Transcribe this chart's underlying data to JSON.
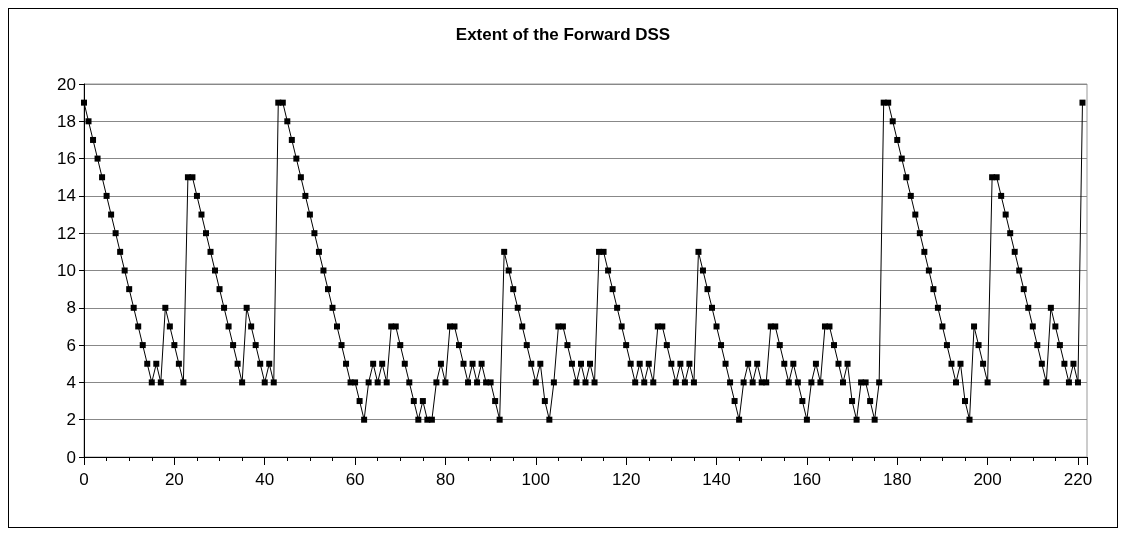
{
  "chart_data": {
    "type": "line",
    "title": "Extent of the Forward DSS",
    "x": [
      0,
      1,
      2,
      3,
      4,
      5,
      6,
      7,
      8,
      9,
      10,
      11,
      12,
      13,
      14,
      15,
      16,
      17,
      18,
      19,
      20,
      21,
      22,
      23,
      24,
      25,
      26,
      27,
      28,
      29,
      30,
      31,
      32,
      33,
      34,
      35,
      36,
      37,
      38,
      39,
      40,
      41,
      42,
      43,
      44,
      45,
      46,
      47,
      48,
      49,
      50,
      51,
      52,
      53,
      54,
      55,
      56,
      57,
      58,
      59,
      60,
      61,
      62,
      63,
      64,
      65,
      66,
      67,
      68,
      69,
      70,
      71,
      72,
      73,
      74,
      75,
      76,
      77,
      78,
      79,
      80,
      81,
      82,
      83,
      84,
      85,
      86,
      87,
      88,
      89,
      90,
      91,
      92,
      93,
      94,
      95,
      96,
      97,
      98,
      99,
      100,
      101,
      102,
      103,
      104,
      105,
      106,
      107,
      108,
      109,
      110,
      111,
      112,
      113,
      114,
      115,
      116,
      117,
      118,
      119,
      120,
      121,
      122,
      123,
      124,
      125,
      126,
      127,
      128,
      129,
      130,
      131,
      132,
      133,
      134,
      135,
      136,
      137,
      138,
      139,
      140,
      141,
      142,
      143,
      144,
      145,
      146,
      147,
      148,
      149,
      150,
      151,
      152,
      153,
      154,
      155,
      156,
      157,
      158,
      159,
      160,
      161,
      162,
      163,
      164,
      165,
      166,
      167,
      168,
      169,
      170,
      171,
      172,
      173,
      174,
      175,
      176,
      177,
      178,
      179,
      180,
      181,
      182,
      183,
      184,
      185,
      186,
      187,
      188,
      189,
      190,
      191,
      192,
      193,
      194,
      195,
      196,
      197,
      198,
      199,
      200,
      201,
      202,
      203,
      204,
      205,
      206,
      207,
      208,
      209,
      210,
      211,
      212,
      213,
      214,
      215,
      216,
      217,
      218,
      219,
      220,
      221
    ],
    "series": [
      {
        "color": "#000000",
        "values": [
          19,
          18,
          17,
          16,
          15,
          14,
          13,
          12,
          11,
          10,
          9,
          8,
          7,
          6,
          5,
          4,
          5,
          4,
          8,
          7,
          6,
          5,
          4,
          15,
          15,
          14,
          13,
          12,
          11,
          10,
          9,
          8,
          7,
          6,
          5,
          4,
          8,
          7,
          6,
          5,
          4,
          5,
          4,
          19,
          19,
          18,
          17,
          16,
          15,
          14,
          13,
          12,
          11,
          10,
          9,
          8,
          7,
          6,
          5,
          4,
          4,
          3,
          2,
          4,
          5,
          4,
          5,
          4,
          7,
          7,
          6,
          5,
          4,
          3,
          2,
          3,
          2,
          2,
          4,
          5,
          4,
          7,
          7,
          6,
          5,
          4,
          5,
          4,
          5,
          4,
          4,
          3,
          2,
          11,
          10,
          9,
          8,
          7,
          6,
          5,
          4,
          5,
          3,
          2,
          4,
          7,
          7,
          6,
          5,
          4,
          5,
          4,
          5,
          4,
          11,
          11,
          10,
          9,
          8,
          7,
          6,
          5,
          4,
          5,
          4,
          5,
          4,
          7,
          7,
          6,
          5,
          4,
          5,
          4,
          5,
          4,
          11,
          10,
          9,
          8,
          7,
          6,
          5,
          4,
          3,
          2,
          4,
          5,
          4,
          5,
          4,
          4,
          7,
          7,
          6,
          5,
          4,
          5,
          4,
          3,
          2,
          4,
          5,
          4,
          7,
          7,
          6,
          5,
          4,
          5,
          3,
          2,
          4,
          4,
          3,
          2,
          4,
          19,
          19,
          18,
          17,
          16,
          15,
          14,
          13,
          12,
          11,
          10,
          9,
          8,
          7,
          6,
          5,
          4,
          5,
          3,
          2,
          7,
          6,
          5,
          4,
          15,
          15,
          14,
          13,
          12,
          11,
          10,
          9,
          8,
          7,
          6,
          5,
          4,
          8,
          7,
          6,
          5,
          4,
          5,
          4,
          19
        ]
      }
    ],
    "xlim": [
      0,
      222
    ],
    "xticks": [
      0,
      20,
      40,
      60,
      80,
      100,
      120,
      140,
      160,
      180,
      200,
      220
    ],
    "ylim": [
      0,
      20
    ],
    "yticks": [
      0,
      2,
      4,
      6,
      8,
      10,
      12,
      14,
      16,
      18,
      20
    ],
    "grid": "y",
    "marker": "square",
    "line_style": "solid"
  }
}
